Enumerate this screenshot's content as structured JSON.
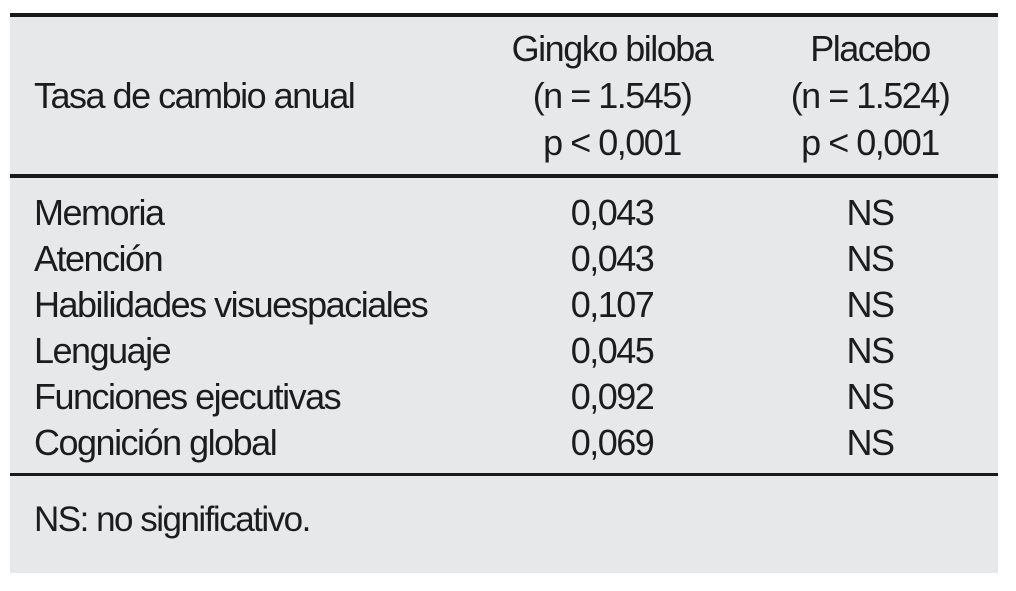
{
  "figure": {
    "header": {
      "row_label": "Tasa de cambio anual",
      "columns": [
        {
          "name": "Gingko biloba",
          "n": "(n = 1.545)",
          "p": "p < 0,001"
        },
        {
          "name": "Placebo",
          "n": "(n = 1.524)",
          "p": "p < 0,001"
        }
      ]
    },
    "rows": [
      {
        "label": "Memoria",
        "gingko": "0,043",
        "placebo": "NS"
      },
      {
        "label": "Atención",
        "gingko": "0,043",
        "placebo": "NS"
      },
      {
        "label": "Habilidades visuespaciales",
        "gingko": "0,107",
        "placebo": "NS"
      },
      {
        "label": "Lenguaje",
        "gingko": "0,045",
        "placebo": "NS"
      },
      {
        "label": "Funciones ejecutivas",
        "gingko": "0,092",
        "placebo": "NS"
      },
      {
        "label": "Cognición global",
        "gingko": "0,069",
        "placebo": "NS"
      }
    ],
    "footnote": "NS: no significativo.",
    "colors": {
      "table_background": "#e7e8e9",
      "rule": "#191919",
      "text": "#1c1c1e",
      "page_background": "#ffffff"
    }
  }
}
